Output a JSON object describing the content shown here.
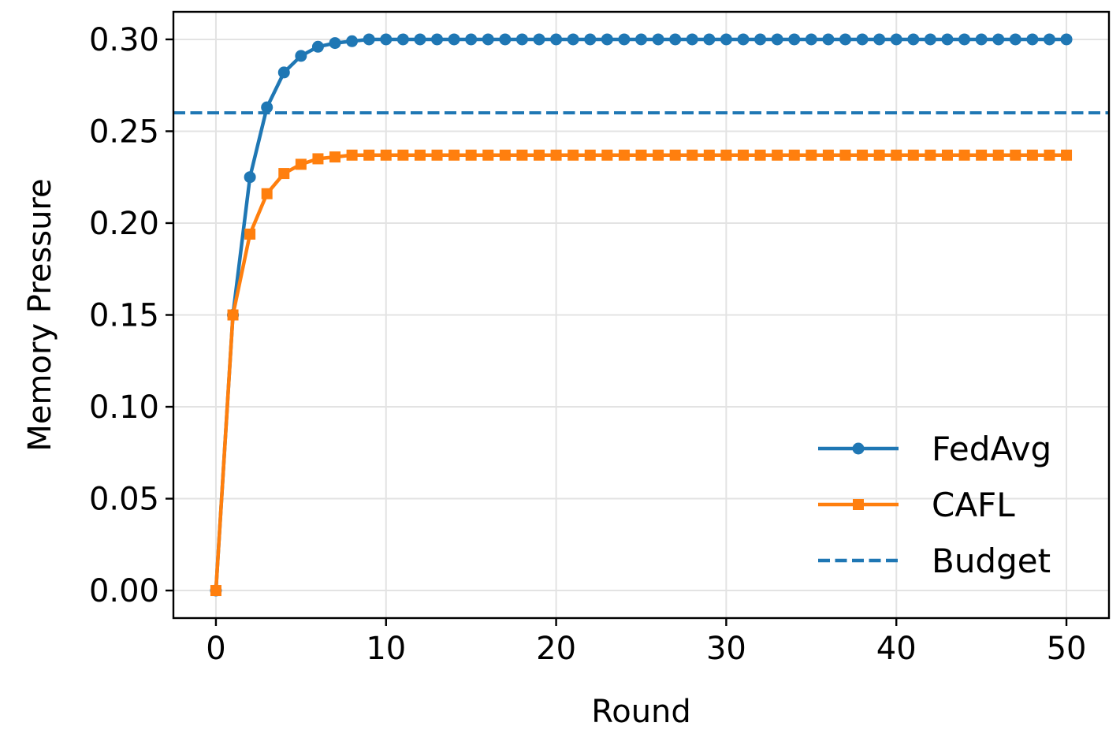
{
  "chart_data": {
    "type": "line",
    "title": "",
    "xlabel": "Round",
    "ylabel": "Memory Pressure",
    "xlim": [
      -2.5,
      52.5
    ],
    "ylim": [
      -0.015,
      0.315
    ],
    "xticks": [
      0,
      10,
      20,
      30,
      40,
      50
    ],
    "xtick_labels": [
      "0",
      "10",
      "20",
      "30",
      "40",
      "50"
    ],
    "yticks": [
      0.0,
      0.05,
      0.1,
      0.15,
      0.2,
      0.25,
      0.3
    ],
    "ytick_labels": [
      "0.00",
      "0.05",
      "0.10",
      "0.15",
      "0.20",
      "0.25",
      "0.30"
    ],
    "grid": true,
    "legend_position": "lower-right",
    "x": [
      0,
      1,
      2,
      3,
      4,
      5,
      6,
      7,
      8,
      9,
      10,
      11,
      12,
      13,
      14,
      15,
      16,
      17,
      18,
      19,
      20,
      21,
      22,
      23,
      24,
      25,
      26,
      27,
      28,
      29,
      30,
      31,
      32,
      33,
      34,
      35,
      36,
      37,
      38,
      39,
      40,
      41,
      42,
      43,
      44,
      45,
      46,
      47,
      48,
      49,
      50
    ],
    "series": [
      {
        "name": "FedAvg",
        "color": "#1f77b4",
        "marker": "circle",
        "values": [
          0.0,
          0.15,
          0.225,
          0.263,
          0.282,
          0.291,
          0.296,
          0.298,
          0.299,
          0.3,
          0.3,
          0.3,
          0.3,
          0.3,
          0.3,
          0.3,
          0.3,
          0.3,
          0.3,
          0.3,
          0.3,
          0.3,
          0.3,
          0.3,
          0.3,
          0.3,
          0.3,
          0.3,
          0.3,
          0.3,
          0.3,
          0.3,
          0.3,
          0.3,
          0.3,
          0.3,
          0.3,
          0.3,
          0.3,
          0.3,
          0.3,
          0.3,
          0.3,
          0.3,
          0.3,
          0.3,
          0.3,
          0.3,
          0.3,
          0.3,
          0.3
        ]
      },
      {
        "name": "CAFL",
        "color": "#ff7f0e",
        "marker": "square",
        "values": [
          0.0,
          0.15,
          0.194,
          0.216,
          0.227,
          0.232,
          0.235,
          0.236,
          0.237,
          0.237,
          0.237,
          0.237,
          0.237,
          0.237,
          0.237,
          0.237,
          0.237,
          0.237,
          0.237,
          0.237,
          0.237,
          0.237,
          0.237,
          0.237,
          0.237,
          0.237,
          0.237,
          0.237,
          0.237,
          0.237,
          0.237,
          0.237,
          0.237,
          0.237,
          0.237,
          0.237,
          0.237,
          0.237,
          0.237,
          0.237,
          0.237,
          0.237,
          0.237,
          0.237,
          0.237,
          0.237,
          0.237,
          0.237,
          0.237,
          0.237,
          0.237
        ]
      }
    ],
    "reference_lines": [
      {
        "name": "Budget",
        "y": 0.26,
        "color": "#1f77b4",
        "style": "dashed"
      }
    ]
  }
}
